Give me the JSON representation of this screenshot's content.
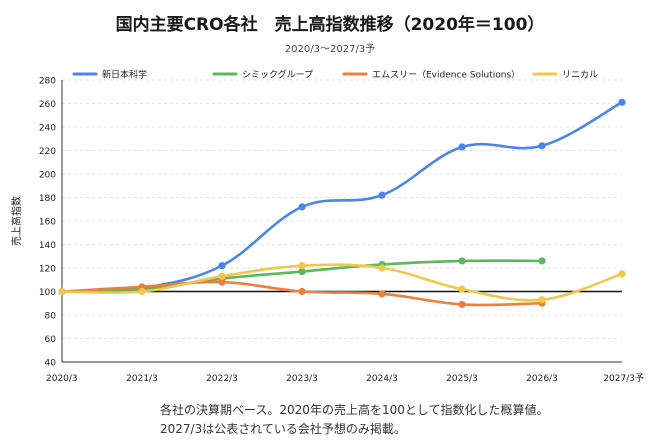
{
  "chart_data": {
    "type": "line",
    "title": "国内主要CRO各社　売上高指数推移（2020年＝100）",
    "subtitle": "2020/3〜2027/3予",
    "ylabel": "売上高指数",
    "xlabel": "",
    "categories": [
      "2020/3",
      "2021/3",
      "2022/3",
      "2023/3",
      "2024/3",
      "2025/3",
      "2026/3",
      "2027/3予"
    ],
    "ylim": [
      40,
      280
    ],
    "yticks": [
      40,
      60,
      80,
      100,
      120,
      140,
      160,
      180,
      200,
      220,
      240,
      260,
      280
    ],
    "grid": true,
    "legend_position": "top",
    "baseline": 100,
    "series": [
      {
        "name": "新日本科学",
        "color": "#4a86e8",
        "values": [
          100,
          103,
          122,
          172,
          182,
          223,
          224,
          261
        ]
      },
      {
        "name": "シミックグループ",
        "color": "#5cb85c",
        "values": [
          100,
          102,
          111,
          117,
          123,
          126,
          126,
          null
        ]
      },
      {
        "name": "エムスリー（Evidence Solutions）",
        "color": "#ef7d3c",
        "values": [
          100,
          104,
          108,
          100,
          98,
          89,
          90,
          null
        ]
      },
      {
        "name": "リニカル",
        "color": "#f1c84b",
        "values": [
          100,
          100,
          113,
          122,
          120,
          102,
          93,
          115
        ]
      }
    ]
  },
  "note": {
    "line1": "各社の決算期ベース。2020年の売上高を100として指数化した概算値。",
    "line2": "2027/3は公表されている会社予想のみ掲載。"
  }
}
